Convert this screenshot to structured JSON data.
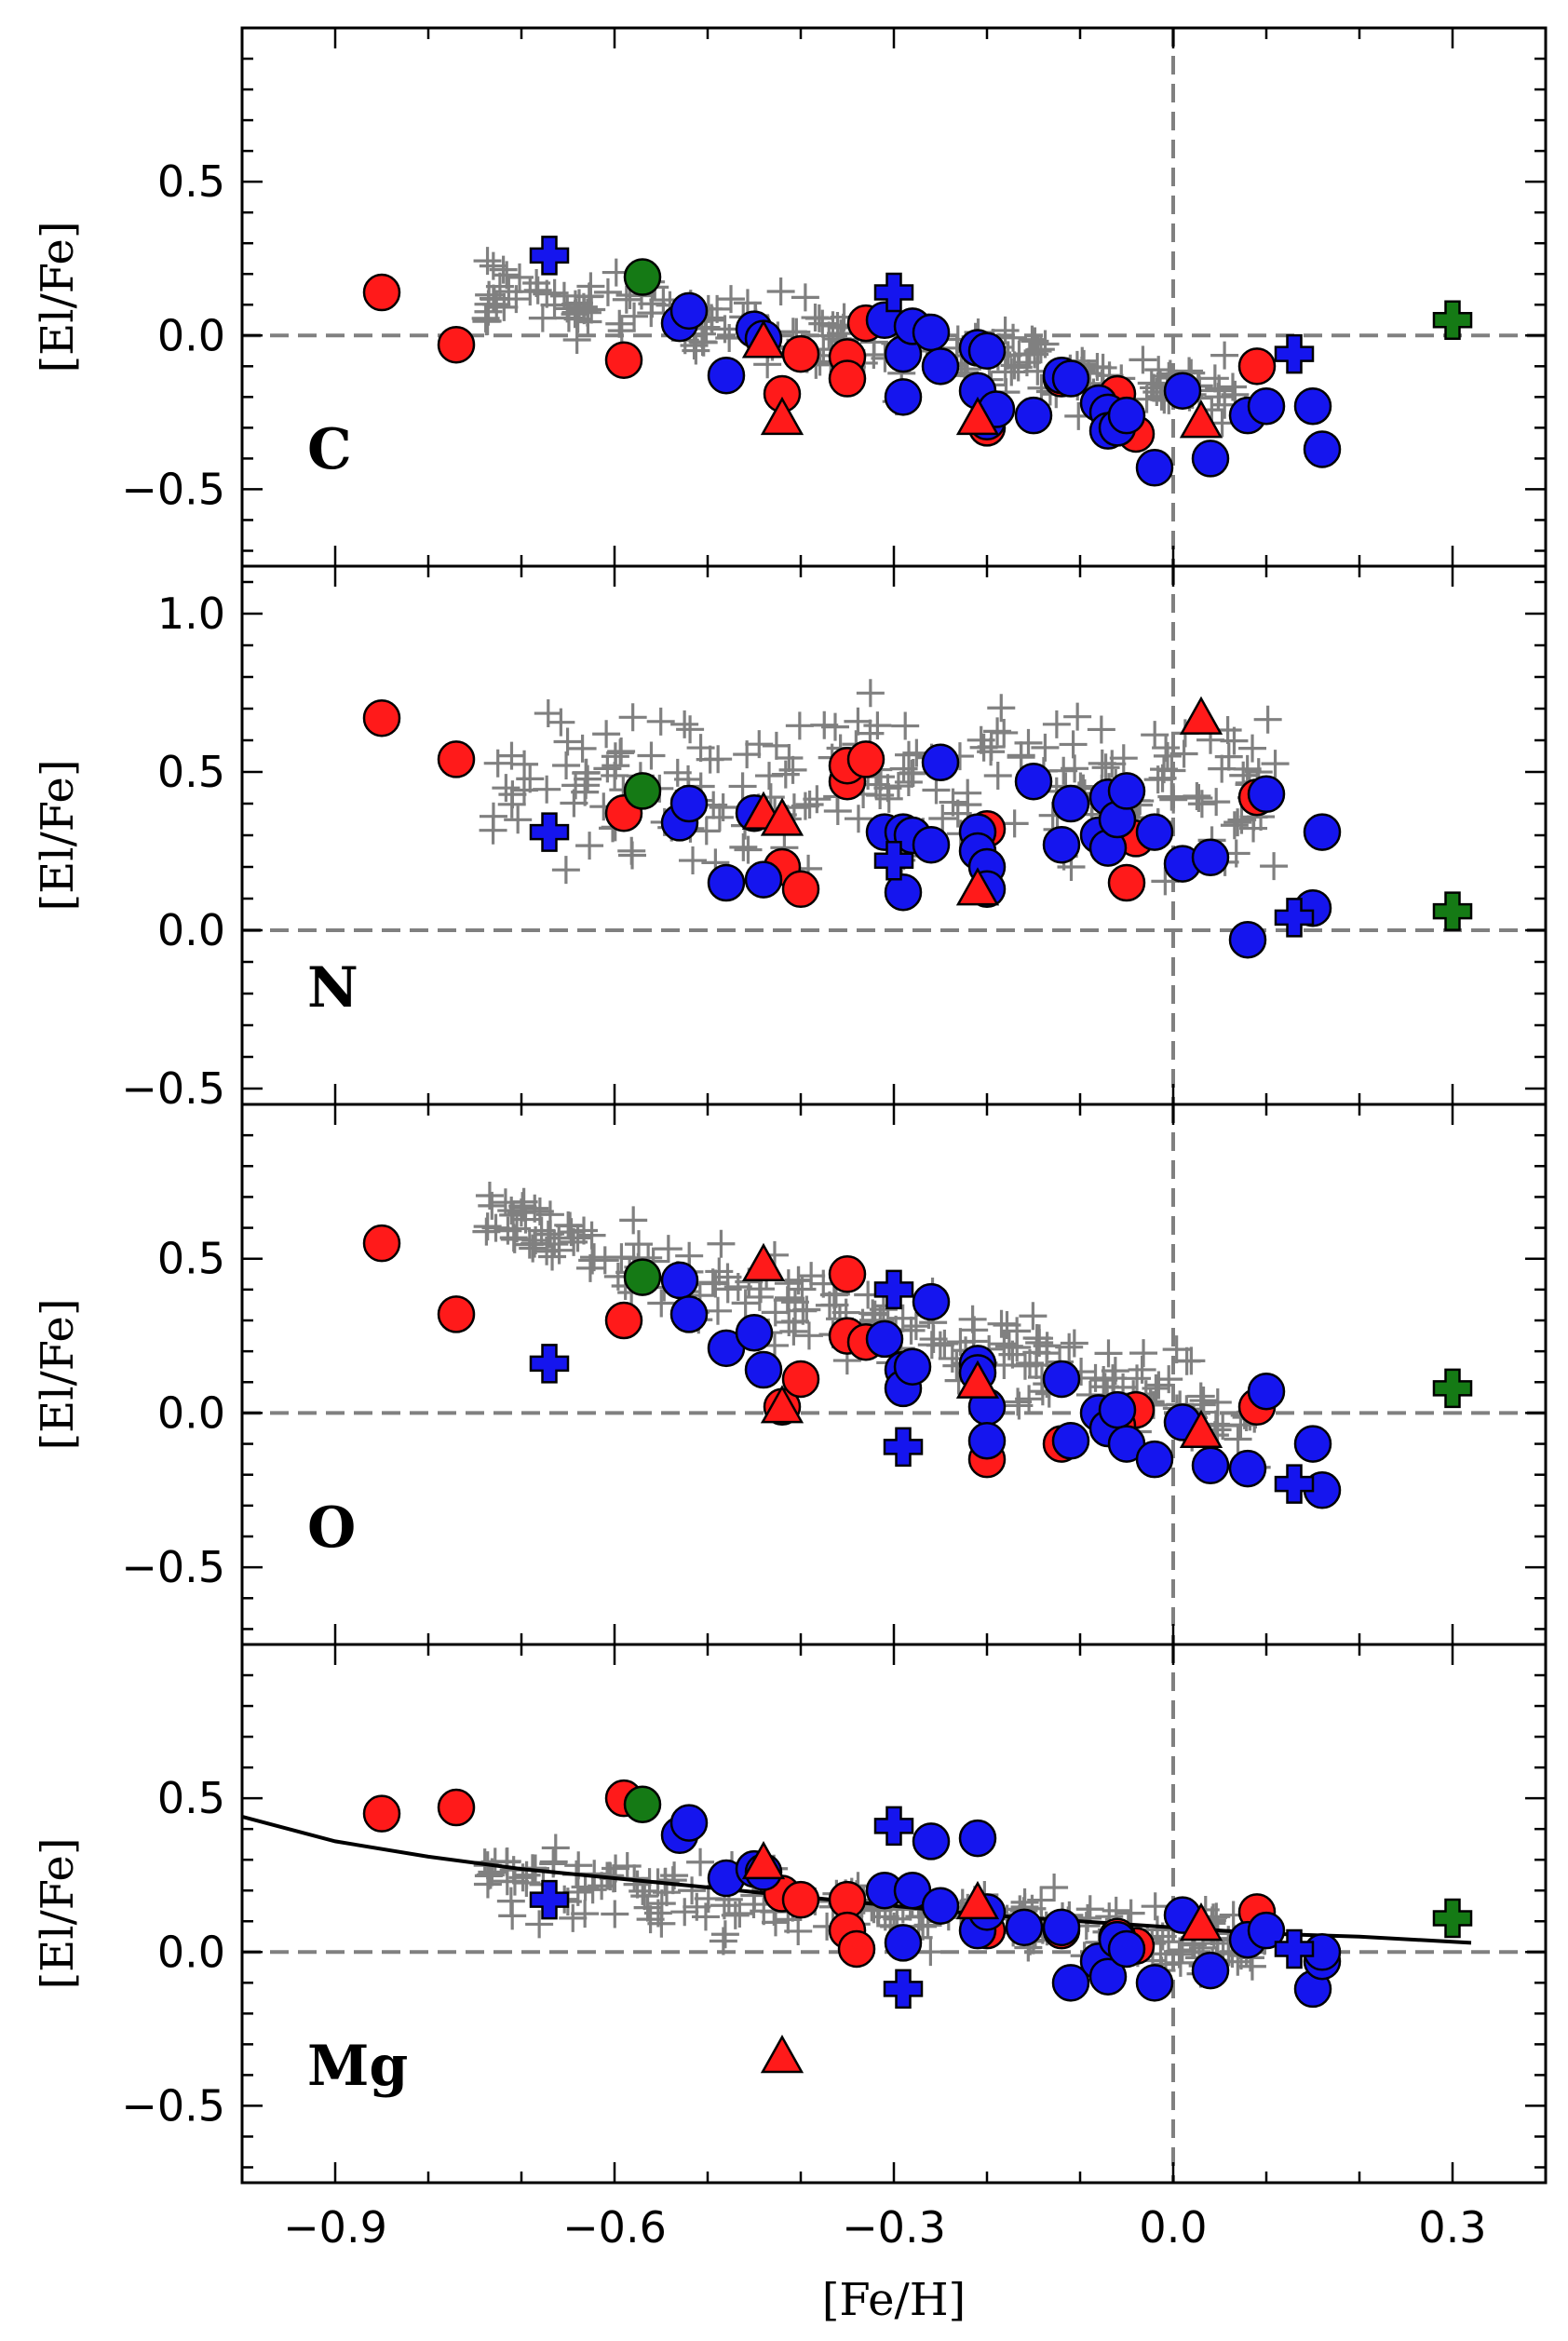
{
  "chart_data": {
    "type": "scatter",
    "layout": "four vertically stacked panels sharing the x-axis",
    "xlabel": "[Fe/H]",
    "xlim": [
      -1.0,
      0.4
    ],
    "xticks": [
      -0.9,
      -0.6,
      -0.3,
      0.0,
      0.3
    ],
    "xtick_labels": [
      "−0.9",
      "−0.6",
      "−0.3",
      "0.0",
      "0.3"
    ],
    "reference_lines": {
      "horizontal_y": 0.0,
      "vertical_x": 0.0,
      "style": "dashed grey"
    },
    "marker_legend": {
      "grey_plus": "background comparison stars",
      "red_circle": "red circles",
      "blue_circle": "blue circles",
      "red_triangle": "red triangles",
      "blue_plus": "blue crosses",
      "green_circle": "green circle",
      "green_plus": "green cross"
    },
    "colors": {
      "red": "#ff1a1a",
      "blue": "#1515ee",
      "green": "#157a15",
      "grey": "#808080",
      "edge": "#000000",
      "dashed": "#808080"
    },
    "panels": [
      {
        "element": "C",
        "ylabel": "[El/Fe]",
        "ylim": [
          -0.75,
          1.0
        ],
        "yticks": [
          -0.5,
          0.0,
          0.5
        ],
        "ytick_labels": [
          "−0.5",
          "0.0",
          "0.5"
        ],
        "red_circles": [
          [
            -0.85,
            0.14
          ],
          [
            -0.77,
            -0.03
          ],
          [
            -0.59,
            -0.08
          ],
          [
            -0.42,
            -0.19
          ],
          [
            -0.4,
            -0.06
          ],
          [
            -0.35,
            -0.07
          ],
          [
            -0.35,
            -0.14
          ],
          [
            -0.33,
            0.04
          ],
          [
            -0.2,
            -0.3
          ],
          [
            -0.12,
            -0.14
          ],
          [
            -0.06,
            -0.19
          ],
          [
            -0.04,
            -0.32
          ],
          [
            0.09,
            -0.1
          ]
        ],
        "blue_circles": [
          [
            -0.53,
            0.04
          ],
          [
            -0.52,
            0.08
          ],
          [
            -0.48,
            -0.13
          ],
          [
            -0.45,
            0.02
          ],
          [
            -0.44,
            -0.01
          ],
          [
            -0.31,
            0.05
          ],
          [
            -0.29,
            -0.06
          ],
          [
            -0.29,
            -0.2
          ],
          [
            -0.28,
            0.03
          ],
          [
            -0.26,
            0.01
          ],
          [
            -0.25,
            -0.1
          ],
          [
            -0.21,
            -0.04
          ],
          [
            -0.21,
            -0.18
          ],
          [
            -0.2,
            -0.05
          ],
          [
            -0.2,
            -0.28
          ],
          [
            -0.19,
            -0.24
          ],
          [
            -0.15,
            -0.26
          ],
          [
            -0.12,
            -0.13
          ],
          [
            -0.11,
            -0.14
          ],
          [
            -0.08,
            -0.22
          ],
          [
            -0.07,
            -0.25
          ],
          [
            -0.07,
            -0.31
          ],
          [
            -0.06,
            -0.3
          ],
          [
            -0.05,
            -0.26
          ],
          [
            -0.02,
            -0.43
          ],
          [
            0.01,
            -0.18
          ],
          [
            0.04,
            -0.4
          ],
          [
            0.08,
            -0.26
          ],
          [
            0.1,
            -0.23
          ],
          [
            0.15,
            -0.23
          ],
          [
            0.16,
            -0.37
          ]
        ],
        "red_triangles": [
          [
            -0.44,
            -0.02
          ],
          [
            -0.42,
            -0.27
          ],
          [
            -0.21,
            -0.27
          ],
          [
            0.03,
            -0.28
          ]
        ],
        "blue_crosses": [
          [
            -0.67,
            0.26
          ],
          [
            -0.3,
            0.14
          ],
          [
            0.13,
            -0.06
          ]
        ],
        "green_circles": [
          [
            -0.57,
            0.19
          ]
        ],
        "green_crosses": [
          [
            0.3,
            0.05
          ]
        ],
        "grey_cloud": {
          "x_range": [
            -0.74,
            0.08
          ],
          "trend": "declines from about +0.25 at [Fe/H]=-0.7 to about -0.2 near 0.0",
          "scatter": 0.08
        }
      },
      {
        "element": "N",
        "ylabel": "[El/Fe]",
        "ylim": [
          -0.55,
          1.15
        ],
        "yticks": [
          -0.5,
          0.0,
          0.5,
          1.0
        ],
        "ytick_labels": [
          "−0.5",
          "0.0",
          "0.5",
          "1.0"
        ],
        "red_circles": [
          [
            -0.85,
            0.67
          ],
          [
            -0.77,
            0.54
          ],
          [
            -0.59,
            0.37
          ],
          [
            -0.42,
            0.2
          ],
          [
            -0.4,
            0.13
          ],
          [
            -0.35,
            0.47
          ],
          [
            -0.35,
            0.52
          ],
          [
            -0.33,
            0.54
          ],
          [
            -0.2,
            0.32
          ],
          [
            -0.04,
            0.29
          ],
          [
            -0.05,
            0.15
          ],
          [
            0.09,
            0.42
          ]
        ],
        "blue_circles": [
          [
            -0.53,
            0.34
          ],
          [
            -0.52,
            0.4
          ],
          [
            -0.48,
            0.15
          ],
          [
            -0.45,
            0.37
          ],
          [
            -0.44,
            0.16
          ],
          [
            -0.31,
            0.31
          ],
          [
            -0.29,
            0.12
          ],
          [
            -0.29,
            0.31
          ],
          [
            -0.28,
            0.3
          ],
          [
            -0.26,
            0.27
          ],
          [
            -0.25,
            0.53
          ],
          [
            -0.21,
            0.31
          ],
          [
            -0.21,
            0.25
          ],
          [
            -0.2,
            0.2
          ],
          [
            -0.2,
            0.13
          ],
          [
            -0.15,
            0.47
          ],
          [
            -0.12,
            0.27
          ],
          [
            -0.11,
            0.4
          ],
          [
            -0.08,
            0.3
          ],
          [
            -0.07,
            0.42
          ],
          [
            -0.07,
            0.26
          ],
          [
            -0.06,
            0.35
          ],
          [
            -0.05,
            0.44
          ],
          [
            -0.02,
            0.31
          ],
          [
            0.01,
            0.21
          ],
          [
            0.04,
            0.23
          ],
          [
            0.08,
            -0.03
          ],
          [
            0.1,
            0.43
          ],
          [
            0.15,
            0.07
          ],
          [
            0.16,
            0.31
          ]
        ],
        "red_triangles": [
          [
            -0.44,
            0.37
          ],
          [
            -0.42,
            0.35
          ],
          [
            -0.21,
            0.13
          ],
          [
            0.03,
            0.67
          ]
        ],
        "blue_crosses": [
          [
            -0.67,
            0.31
          ],
          [
            -0.3,
            0.22
          ],
          [
            0.13,
            0.04
          ]
        ],
        "green_circles": [
          [
            -0.57,
            0.44
          ]
        ],
        "green_crosses": [
          [
            0.3,
            0.06
          ]
        ],
        "grey_cloud": {
          "x_range": [
            -0.74,
            0.11
          ],
          "trend": "broad band roughly 0.1 to 0.9, mean about 0.45",
          "scatter": 0.18
        }
      },
      {
        "element": "O",
        "ylabel": "[El/Fe]",
        "ylim": [
          -0.75,
          1.0
        ],
        "yticks": [
          -0.5,
          0.0,
          0.5
        ],
        "ytick_labels": [
          "−0.5",
          "0.0",
          "0.5"
        ],
        "red_circles": [
          [
            -0.85,
            0.55
          ],
          [
            -0.77,
            0.32
          ],
          [
            -0.59,
            0.3
          ],
          [
            -0.42,
            0.02
          ],
          [
            -0.4,
            0.11
          ],
          [
            -0.35,
            0.45
          ],
          [
            -0.35,
            0.25
          ],
          [
            -0.33,
            0.23
          ],
          [
            -0.2,
            -0.15
          ],
          [
            -0.12,
            -0.1
          ],
          [
            -0.04,
            0.01
          ],
          [
            -0.06,
            -0.04
          ],
          [
            0.09,
            0.02
          ]
        ],
        "blue_circles": [
          [
            -0.53,
            0.43
          ],
          [
            -0.52,
            0.32
          ],
          [
            -0.48,
            0.21
          ],
          [
            -0.45,
            0.26
          ],
          [
            -0.44,
            0.14
          ],
          [
            -0.31,
            0.24
          ],
          [
            -0.29,
            0.14
          ],
          [
            -0.29,
            0.08
          ],
          [
            -0.28,
            0.15
          ],
          [
            -0.26,
            0.36
          ],
          [
            -0.21,
            0.16
          ],
          [
            -0.21,
            0.13
          ],
          [
            -0.2,
            0.02
          ],
          [
            -0.2,
            -0.09
          ],
          [
            -0.12,
            0.11
          ],
          [
            -0.11,
            -0.09
          ],
          [
            -0.08,
            0.0
          ],
          [
            -0.07,
            -0.05
          ],
          [
            -0.06,
            0.01
          ],
          [
            -0.05,
            -0.1
          ],
          [
            -0.02,
            -0.15
          ],
          [
            0.01,
            -0.03
          ],
          [
            0.04,
            -0.17
          ],
          [
            0.08,
            -0.18
          ],
          [
            0.1,
            0.07
          ],
          [
            0.15,
            -0.1
          ],
          [
            0.16,
            -0.25
          ]
        ],
        "red_triangles": [
          [
            -0.44,
            0.48
          ],
          [
            -0.42,
            0.02
          ],
          [
            -0.21,
            0.1
          ],
          [
            0.03,
            -0.06
          ]
        ],
        "blue_crosses": [
          [
            -0.67,
            0.16
          ],
          [
            -0.3,
            0.4
          ],
          [
            -0.29,
            -0.11
          ],
          [
            0.13,
            -0.23
          ]
        ],
        "green_circles": [
          [
            -0.57,
            0.44
          ]
        ],
        "green_crosses": [
          [
            0.3,
            0.08
          ]
        ],
        "grey_cloud": {
          "x_range": [
            -0.74,
            0.09
          ],
          "trend": "declines from about +0.6 at [Fe/H]=-0.7 to about 0.0 near 0.05",
          "scatter": 0.09
        }
      },
      {
        "element": "Mg",
        "ylabel": "[El/Fe]",
        "ylim": [
          -0.75,
          1.0
        ],
        "yticks": [
          -0.5,
          0.0,
          0.5
        ],
        "ytick_labels": [
          "−0.5",
          "0.0",
          "0.5"
        ],
        "red_circles": [
          [
            -0.85,
            0.45
          ],
          [
            -0.77,
            0.47
          ],
          [
            -0.59,
            0.5
          ],
          [
            -0.42,
            0.19
          ],
          [
            -0.4,
            0.17
          ],
          [
            -0.35,
            0.17
          ],
          [
            -0.35,
            0.07
          ],
          [
            -0.34,
            0.01
          ],
          [
            -0.2,
            0.07
          ],
          [
            -0.12,
            0.07
          ],
          [
            -0.04,
            0.02
          ],
          [
            -0.06,
            0.05
          ],
          [
            0.09,
            0.13
          ]
        ],
        "blue_circles": [
          [
            -0.53,
            0.38
          ],
          [
            -0.52,
            0.42
          ],
          [
            -0.48,
            0.24
          ],
          [
            -0.45,
            0.27
          ],
          [
            -0.44,
            0.26
          ],
          [
            -0.31,
            0.2
          ],
          [
            -0.29,
            0.03
          ],
          [
            -0.28,
            0.2
          ],
          [
            -0.26,
            0.36
          ],
          [
            -0.25,
            0.15
          ],
          [
            -0.21,
            0.37
          ],
          [
            -0.21,
            0.07
          ],
          [
            -0.2,
            0.13
          ],
          [
            -0.16,
            0.08
          ],
          [
            -0.12,
            0.08
          ],
          [
            -0.11,
            -0.1
          ],
          [
            -0.08,
            -0.03
          ],
          [
            -0.07,
            -0.08
          ],
          [
            -0.06,
            0.04
          ],
          [
            -0.05,
            0.01
          ],
          [
            -0.02,
            -0.1
          ],
          [
            0.01,
            0.12
          ],
          [
            0.04,
            -0.06
          ],
          [
            0.08,
            0.04
          ],
          [
            0.1,
            0.07
          ],
          [
            0.15,
            -0.12
          ],
          [
            0.16,
            -0.03
          ],
          [
            0.16,
            0.0
          ]
        ],
        "red_triangles": [
          [
            -0.44,
            0.29
          ],
          [
            -0.42,
            -0.34
          ],
          [
            -0.21,
            0.16
          ],
          [
            0.03,
            0.09
          ]
        ],
        "blue_crosses": [
          [
            -0.67,
            0.17
          ],
          [
            -0.3,
            0.41
          ],
          [
            -0.29,
            -0.12
          ],
          [
            0.13,
            0.01
          ]
        ],
        "green_circles": [
          [
            -0.57,
            0.48
          ]
        ],
        "green_crosses": [
          [
            0.3,
            0.11
          ]
        ],
        "grey_cloud": {
          "x_range": [
            -0.74,
            0.1
          ],
          "trend": "declines from about +0.25 at [Fe/H]=-0.7 to about 0.05 near 0.05",
          "scatter": 0.08
        },
        "trend_line": {
          "x": [
            -1.0,
            -0.9,
            -0.8,
            -0.7,
            -0.6,
            -0.5,
            -0.4,
            -0.3,
            -0.2,
            -0.1,
            0.0,
            0.1,
            0.2,
            0.32
          ],
          "y": [
            0.44,
            0.36,
            0.31,
            0.27,
            0.24,
            0.21,
            0.18,
            0.15,
            0.12,
            0.1,
            0.08,
            0.06,
            0.05,
            0.03
          ]
        }
      }
    ]
  }
}
